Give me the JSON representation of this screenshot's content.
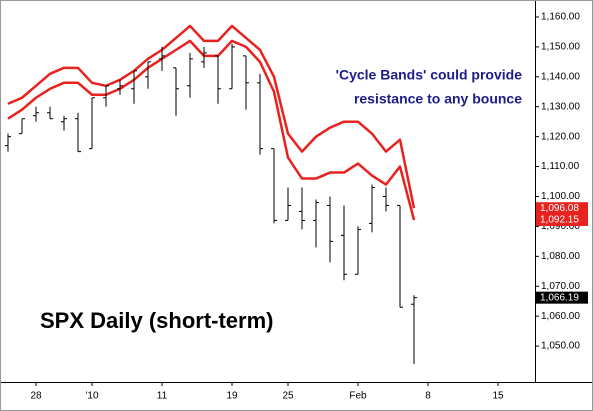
{
  "chart_data": {
    "type": "ohlc",
    "title": "SPX Daily (short-term)",
    "annotation": [
      "'Cycle Bands' could provide",
      "resistance to any bounce"
    ],
    "categories": [
      null,
      null,
      "28",
      null,
      null,
      null,
      "'10",
      null,
      null,
      null,
      null,
      "11",
      null,
      null,
      null,
      null,
      "19",
      null,
      null,
      null,
      "25",
      null,
      null,
      null,
      null,
      "Feb",
      null,
      null,
      null,
      null,
      "8",
      null,
      null,
      null,
      null,
      "15"
    ],
    "open": [
      1117,
      1121,
      1127,
      1128,
      1125,
      1126,
      1116,
      1133,
      1136,
      1136,
      1140,
      1146,
      1143,
      1137,
      1145,
      1147,
      1136,
      1147,
      1138,
      1116,
      1092,
      1095,
      1092,
      1097,
      1087,
      1074,
      1091,
      1100,
      1097,
      1064,
      null,
      null,
      null,
      null,
      null,
      null
    ],
    "high": [
      1121,
      1126,
      1130,
      1130,
      1127,
      1128,
      1133,
      1137,
      1139,
      1142,
      1145,
      1150,
      1143,
      1148,
      1150,
      1147,
      1151,
      1147,
      1141,
      1116,
      1103,
      1103,
      1099,
      1100,
      1097,
      1090,
      1104,
      1103,
      1097,
      1067,
      null,
      null,
      null,
      null,
      null,
      null
    ],
    "low": [
      1115,
      1121,
      1125,
      1126,
      1122,
      1115,
      1116,
      1130,
      1134,
      1131,
      1136,
      1142,
      1127,
      1133,
      1143,
      1131,
      1136,
      1129,
      1114,
      1091,
      1092,
      1089,
      1083,
      1078,
      1072,
      1074,
      1088,
      1095,
      1063,
      1044,
      null,
      null,
      null,
      null,
      null,
      null
    ],
    "close": [
      1120,
      1126,
      1128,
      1126,
      1126,
      1115,
      1133,
      1137,
      1137,
      1142,
      1145,
      1147,
      1136,
      1146,
      1148,
      1136,
      1150,
      1138,
      1116,
      1092,
      1097,
      1092,
      1098,
      1085,
      1074,
      1089,
      1103,
      1097,
      1063,
      1066.19,
      null,
      null,
      null,
      null,
      null,
      null
    ],
    "close_label": "1,066.19",
    "ohlc_color": "#000000",
    "series": [
      {
        "color": "#e8221e",
        "last_label": "1,096.08",
        "values": [
          1131,
          1133,
          1137,
          1141,
          1143,
          1143,
          1138,
          1137,
          1139,
          1142,
          1146,
          1149,
          1153,
          1157,
          1152,
          1152,
          1157,
          1153,
          1149,
          1140,
          1121,
          1115,
          1120,
          1123,
          1125,
          1125,
          1121,
          1115,
          1119,
          1096.08,
          null,
          null,
          null,
          null,
          null,
          null
        ]
      },
      {
        "color": "#e8221e",
        "last_label": "1,092.15",
        "values": [
          1126,
          1129,
          1133,
          1136,
          1138,
          1138,
          1134,
          1134,
          1136,
          1139,
          1143,
          1146,
          1149,
          1152,
          1147,
          1147,
          1152,
          1150,
          1145,
          1135,
          1113,
          1106,
          1106,
          1108,
          1108,
          1111,
          1107,
          1104,
          1110,
          1092.15,
          null,
          null,
          null,
          null,
          null,
          null
        ]
      }
    ],
    "ylim": [
      1038,
      1164
    ],
    "yticks": [
      {
        "value": 1050,
        "label": "1,050.00"
      },
      {
        "value": 1060,
        "label": "1,060.00"
      },
      {
        "value": 1070,
        "label": "1,070.00"
      },
      {
        "value": 1080,
        "label": "1,080.00"
      },
      {
        "value": 1090,
        "label": "1,090.00"
      },
      {
        "value": 1100,
        "label": "1,100.00"
      },
      {
        "value": 1110,
        "label": "1,110.00"
      },
      {
        "value": 1120,
        "label": "1,120.00"
      },
      {
        "value": 1130,
        "label": "1,130.00"
      },
      {
        "value": 1140,
        "label": "1,140.00"
      },
      {
        "value": 1150,
        "label": "1,150.00"
      },
      {
        "value": 1160,
        "label": "1,160.00"
      }
    ]
  }
}
